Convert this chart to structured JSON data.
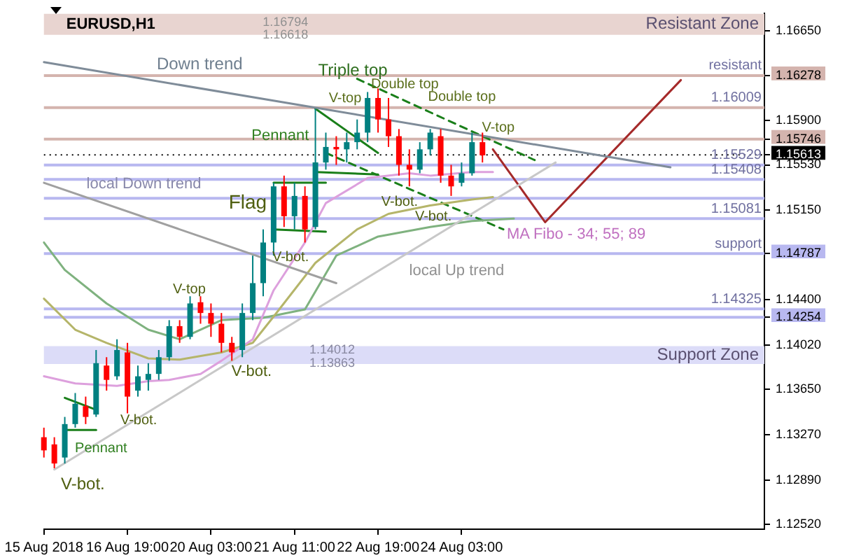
{
  "chart_data": {
    "type": "candlestick",
    "title": "EURUSD,H1",
    "categories": [
      "15 Aug 2018",
      null,
      null,
      null,
      null,
      null,
      null,
      null,
      "16 Aug 19:00",
      null,
      null,
      null,
      null,
      null,
      null,
      null,
      "20 Aug 03:00",
      null,
      null,
      null,
      null,
      null,
      null,
      null,
      "21 Aug 11:00",
      null,
      null,
      null,
      null,
      null,
      null,
      null,
      "22 Aug 19:00",
      null,
      null,
      null,
      null,
      null,
      null,
      null,
      "24 Aug 03:00",
      null,
      null,
      null,
      null,
      null,
      null,
      null,
      null,
      null,
      null,
      null,
      null,
      null,
      null,
      null,
      null,
      null,
      null,
      null,
      null,
      null,
      null,
      null,
      null,
      null,
      null,
      null,
      null,
      null
    ],
    "ohlc": [
      [
        1.1325,
        1.1333,
        1.1308,
        1.1314
      ],
      [
        1.1319,
        1.1325,
        1.1299,
        1.1303
      ],
      [
        1.1308,
        1.1342,
        1.1303,
        1.1336
      ],
      [
        1.1336,
        1.1362,
        1.1333,
        1.1353
      ],
      [
        1.1351,
        1.1359,
        1.1336,
        1.1342
      ],
      [
        1.1344,
        1.1398,
        1.1342,
        1.1387
      ],
      [
        1.1385,
        1.1392,
        1.1364,
        1.1373
      ],
      [
        1.1376,
        1.1407,
        1.1373,
        1.1398
      ],
      [
        1.1396,
        1.1404,
        1.1345,
        1.1359
      ],
      [
        1.1364,
        1.1385,
        1.1359,
        1.1376
      ],
      [
        1.1373,
        1.1387,
        1.1364,
        1.1378
      ],
      [
        1.1378,
        1.1398,
        1.1373,
        1.1392
      ],
      [
        1.1392,
        1.1423,
        1.1389,
        1.1418
      ],
      [
        1.1418,
        1.1423,
        1.1404,
        1.1409
      ],
      [
        1.1409,
        1.1443,
        1.1407,
        1.1437
      ],
      [
        1.1438,
        1.1443,
        1.142,
        1.1429
      ],
      [
        1.1429,
        1.1437,
        1.1409,
        1.142
      ],
      [
        1.142,
        1.1429,
        1.1396,
        1.1404
      ],
      [
        1.1404,
        1.1409,
        1.1389,
        1.1396
      ],
      [
        1.1398,
        1.1437,
        1.1392,
        1.1429
      ],
      [
        1.1429,
        1.1477,
        1.1423,
        1.1454
      ],
      [
        1.1454,
        1.1499,
        1.1443,
        1.1488
      ],
      [
        1.1488,
        1.1538,
        1.1477,
        1.1535
      ],
      [
        1.1535,
        1.1544,
        1.1501,
        1.151
      ],
      [
        1.151,
        1.1538,
        1.1499,
        1.1527
      ],
      [
        1.1527,
        1.1535,
        1.1488,
        1.1499
      ],
      [
        1.1501,
        1.16,
        1.1499,
        1.1555
      ],
      [
        1.1555,
        1.158,
        1.1549,
        1.1568
      ],
      [
        1.1568,
        1.1577,
        1.1553,
        1.1566
      ],
      [
        1.1566,
        1.158,
        1.1555,
        1.1572
      ],
      [
        1.1572,
        1.1591,
        1.1566,
        1.158
      ],
      [
        1.158,
        1.1614,
        1.1572,
        1.1609
      ],
      [
        1.1609,
        1.1617,
        1.158,
        1.1591
      ],
      [
        1.1591,
        1.1609,
        1.1568,
        1.1577
      ],
      [
        1.1577,
        1.1583,
        1.1544,
        1.1553
      ],
      [
        1.1553,
        1.1566,
        1.1535,
        1.1549
      ],
      [
        1.1549,
        1.1572,
        1.1546,
        1.1566
      ],
      [
        1.1566,
        1.1583,
        1.1561,
        1.158
      ],
      [
        1.1577,
        1.1583,
        1.1538,
        1.1544
      ],
      [
        1.1544,
        1.1553,
        1.1527,
        1.1535
      ],
      [
        1.1538,
        1.1555,
        1.1535,
        1.1546
      ],
      [
        1.1546,
        1.158,
        1.1544,
        1.1572
      ],
      [
        1.1572,
        1.158,
        1.1555,
        1.1561
      ],
      null,
      null,
      null,
      null,
      null,
      null,
      null,
      null,
      null,
      null,
      null,
      null,
      null,
      null,
      null,
      null,
      null,
      null,
      null,
      null,
      null,
      null,
      null,
      null,
      null,
      null,
      null
    ],
    "colors": [
      "#ff0000",
      "#ff0000",
      "#008080",
      "#008080",
      "#ff0000",
      "#008080",
      "#ff0000",
      "#008080",
      "#ff0000",
      "#008080",
      "#008080",
      "#008080",
      "#008080",
      "#ff0000",
      "#008080",
      "#ff0000",
      "#ff0000",
      "#ff0000",
      "#ff0000",
      "#008080",
      "#008080",
      "#008080",
      "#008080",
      "#ff0000",
      "#008080",
      "#ff0000",
      "#008080",
      "#008080",
      "#ff0000",
      "#008080",
      "#008080",
      "#008080",
      "#ff0000",
      "#ff0000",
      "#ff0000",
      "#ff0000",
      "#008080",
      "#008080",
      "#ff0000",
      "#ff0000",
      "#008080",
      "#008080",
      "#ff0000",
      null,
      null,
      null,
      null,
      null,
      null,
      null,
      null,
      null,
      null,
      null,
      null,
      null,
      null,
      null,
      null,
      null,
      null,
      null,
      null,
      null,
      null,
      null,
      null,
      null,
      null,
      null
    ],
    "series": [
      {
        "type": "line",
        "color": "#7f8c99",
        "values": [
          1.1639,
          null,
          null,
          null,
          null,
          null,
          null,
          null,
          null,
          null,
          null,
          null,
          null,
          null,
          null,
          null,
          null,
          null,
          null,
          null,
          null,
          null,
          null,
          null,
          null,
          null,
          null,
          null,
          null,
          null,
          null,
          null,
          null,
          null,
          null,
          null,
          null,
          null,
          null,
          null,
          null,
          null,
          null,
          null,
          null,
          null,
          null,
          null,
          null,
          null,
          null,
          null,
          null,
          null,
          null,
          null,
          null,
          null,
          null,
          null,
          1.1551,
          null,
          null,
          null,
          null,
          null,
          null,
          null,
          null,
          null
        ]
      },
      {
        "type": "line",
        "color": "#a0a0a0",
        "values": [
          1.1538,
          null,
          null,
          null,
          null,
          null,
          null,
          null,
          null,
          null,
          null,
          null,
          null,
          null,
          null,
          null,
          null,
          null,
          null,
          null,
          null,
          null,
          null,
          null,
          null,
          null,
          null,
          null,
          1.1454,
          null,
          null,
          null,
          null,
          null,
          null,
          null,
          null,
          null,
          null,
          null,
          null,
          null,
          null,
          null,
          null,
          null,
          null,
          null,
          null,
          null,
          null,
          null,
          null,
          null,
          null,
          null,
          null,
          null,
          null,
          null,
          null,
          null,
          null,
          null,
          null,
          null,
          null,
          null,
          null,
          null
        ]
      },
      {
        "type": "line",
        "color": "#c8c8c8",
        "values": [
          null,
          1.1298,
          null,
          null,
          null,
          null,
          null,
          null,
          null,
          null,
          null,
          null,
          null,
          null,
          null,
          null,
          null,
          null,
          null,
          null,
          null,
          null,
          null,
          null,
          null,
          null,
          null,
          null,
          null,
          null,
          null,
          null,
          null,
          null,
          null,
          null,
          null,
          null,
          null,
          null,
          null,
          null,
          null,
          null,
          null,
          null,
          null,
          null,
          null,
          1.1555,
          null,
          null,
          null,
          null,
          null,
          null,
          null,
          null,
          null,
          null,
          null,
          null,
          null,
          null,
          null,
          null,
          null,
          null,
          null,
          null
        ]
      },
      {
        "type": "line",
        "color": "#a52a2a",
        "values": [
          null,
          null,
          null,
          null,
          null,
          null,
          null,
          null,
          null,
          null,
          null,
          null,
          null,
          null,
          null,
          null,
          null,
          null,
          null,
          null,
          null,
          null,
          null,
          null,
          null,
          null,
          null,
          null,
          null,
          null,
          null,
          null,
          null,
          null,
          null,
          null,
          null,
          null,
          null,
          null,
          null,
          null,
          null,
          1.1566,
          null,
          null,
          null,
          null,
          1.1505,
          null,
          null,
          null,
          null,
          null,
          null,
          null,
          null,
          null,
          null,
          null,
          null,
          1.1624,
          null,
          null,
          null,
          null,
          null,
          null,
          null,
          null
        ]
      },
      {
        "type": "line",
        "color": "#dda0dd",
        "values": [
          1.1376,
          null,
          null,
          1.137,
          null,
          null,
          null,
          1.1368,
          null,
          null,
          1.1372,
          null,
          1.1373,
          null,
          null,
          1.1378,
          null,
          1.1389,
          null,
          null,
          1.1407,
          null,
          1.1448,
          null,
          null,
          1.1488,
          null,
          1.1521,
          null,
          null,
          null,
          1.1542,
          null,
          null,
          null,
          1.1546,
          null,
          1.1544,
          null,
          null,
          null,
          1.1547,
          null,
          1.1547,
          null,
          null,
          null,
          null,
          null,
          null,
          null,
          null,
          null,
          null,
          null,
          null,
          null,
          null,
          null,
          null,
          null,
          null,
          null,
          null,
          null,
          null,
          null,
          null,
          null,
          null
        ]
      },
      {
        "type": "line",
        "color": "#b5b56a",
        "values": [
          1.1441,
          null,
          null,
          1.1415,
          null,
          null,
          1.1404,
          null,
          null,
          null,
          1.1391,
          null,
          null,
          1.139,
          null,
          null,
          null,
          1.1396,
          null,
          null,
          1.1404,
          null,
          1.1426,
          null,
          null,
          null,
          1.1471,
          null,
          null,
          null,
          1.1499,
          null,
          null,
          1.1512,
          null,
          null,
          null,
          1.1519,
          null,
          null,
          null,
          1.1524,
          null,
          1.1526,
          null,
          null,
          null,
          null,
          null,
          null,
          null,
          null,
          null,
          null,
          null,
          null,
          null,
          null,
          null,
          null,
          null,
          null,
          null,
          null,
          null,
          null,
          null,
          null,
          null,
          null
        ]
      },
      {
        "type": "line",
        "color": "#7fb27f",
        "values": [
          1.1488,
          null,
          1.1465,
          null,
          null,
          null,
          1.1437,
          null,
          null,
          null,
          1.1415,
          null,
          null,
          1.1407,
          null,
          null,
          null,
          1.1423,
          null,
          null,
          null,
          1.1425,
          null,
          null,
          null,
          1.1432,
          null,
          null,
          1.1477,
          null,
          null,
          null,
          1.1493,
          null,
          null,
          null,
          null,
          1.1501,
          null,
          null,
          null,
          1.1506,
          null,
          null,
          null,
          1.1508,
          null,
          null,
          null,
          null,
          null,
          null,
          null,
          null,
          null,
          null,
          null,
          null,
          null,
          null,
          null,
          null,
          null,
          null,
          null,
          null,
          null,
          null,
          null,
          null
        ]
      },
      {
        "type": "line",
        "color": "#1a7f1a",
        "values": [
          null,
          null,
          null,
          null,
          null,
          null,
          null,
          null,
          null,
          null,
          null,
          null,
          null,
          null,
          null,
          null,
          null,
          null,
          null,
          null,
          null,
          null,
          1.1538,
          null,
          null,
          null,
          null,
          1.1538,
          null,
          null,
          null,
          null,
          null,
          null,
          null,
          null,
          null,
          null,
          null,
          null,
          null,
          null,
          null,
          null,
          null,
          null,
          null,
          null,
          null,
          null,
          null,
          null,
          null,
          null,
          null,
          null,
          null,
          null,
          null,
          null,
          null,
          null,
          null,
          null,
          null,
          null,
          null,
          null,
          null,
          null
        ]
      },
      {
        "type": "line",
        "color": "#1a7f1a",
        "values": [
          null,
          null,
          null,
          null,
          null,
          null,
          null,
          null,
          null,
          null,
          null,
          null,
          null,
          null,
          null,
          null,
          null,
          null,
          null,
          null,
          null,
          null,
          1.1499,
          null,
          null,
          null,
          null,
          1.1497,
          null,
          null,
          null,
          null,
          null,
          null,
          null,
          null,
          null,
          null,
          null,
          null,
          null,
          null,
          null,
          null,
          null,
          null,
          null,
          null,
          null,
          null,
          null,
          null,
          null,
          null,
          null,
          null,
          null,
          null,
          null,
          null,
          null,
          null,
          null,
          null,
          null,
          null,
          null,
          null,
          null,
          null
        ]
      },
      {
        "type": "line",
        "color": "#1a7f1a",
        "values": [
          null,
          null,
          null,
          null,
          null,
          null,
          null,
          null,
          null,
          null,
          null,
          null,
          null,
          null,
          null,
          null,
          null,
          null,
          null,
          null,
          null,
          null,
          null,
          null,
          null,
          null,
          1.16,
          null,
          null,
          null,
          null,
          null,
          1.1563,
          null,
          null,
          null,
          null,
          null,
          null,
          null,
          null,
          null,
          null,
          null,
          null,
          null,
          null,
          null,
          null,
          null,
          null,
          null,
          null,
          null,
          null,
          null,
          null,
          null,
          null,
          null,
          null,
          null,
          null,
          null,
          null,
          null,
          null,
          null,
          null,
          null
        ]
      },
      {
        "type": "line",
        "color": "#1a7f1a",
        "values": [
          null,
          null,
          null,
          null,
          null,
          null,
          null,
          null,
          null,
          null,
          null,
          null,
          null,
          null,
          null,
          null,
          null,
          null,
          null,
          null,
          null,
          null,
          null,
          null,
          null,
          null,
          1.1547,
          null,
          null,
          null,
          null,
          null,
          1.1545,
          null,
          null,
          null,
          null,
          null,
          null,
          null,
          null,
          null,
          null,
          null,
          null,
          null,
          null,
          null,
          null,
          null,
          null,
          null,
          null,
          null,
          null,
          null,
          null,
          null,
          null,
          null,
          null,
          null,
          null,
          null,
          null,
          null,
          null,
          null,
          null,
          null
        ]
      },
      {
        "type": "line",
        "color": "#1a7f1a",
        "values": [
          null,
          null,
          1.1358,
          null,
          null,
          1.1348,
          null,
          null,
          null,
          null,
          null,
          null,
          null,
          null,
          null,
          null,
          null,
          null,
          null,
          null,
          null,
          null,
          null,
          null,
          null,
          null,
          null,
          null,
          null,
          null,
          null,
          null,
          null,
          null,
          null,
          null,
          null,
          null,
          null,
          null,
          null,
          null,
          null,
          null,
          null,
          null,
          null,
          null,
          null,
          null,
          null,
          null,
          null,
          null,
          null,
          null,
          null,
          null,
          null,
          null,
          null,
          null,
          null,
          null,
          null,
          null,
          null,
          null,
          null,
          null
        ]
      },
      {
        "type": "line",
        "color": "#1a7f1a",
        "values": [
          null,
          null,
          1.1331,
          null,
          null,
          1.1331,
          null,
          null,
          null,
          null,
          null,
          null,
          null,
          null,
          null,
          null,
          null,
          null,
          null,
          null,
          null,
          null,
          null,
          null,
          null,
          null,
          null,
          null,
          null,
          null,
          null,
          null,
          null,
          null,
          null,
          null,
          null,
          null,
          null,
          null,
          null,
          null,
          null,
          null,
          null,
          null,
          null,
          null,
          null,
          null,
          null,
          null,
          null,
          null,
          null,
          null,
          null,
          null,
          null,
          null,
          null,
          null,
          null,
          null,
          null,
          null,
          null,
          null,
          null,
          null
        ]
      },
      {
        "type": "line",
        "color": "#1a7f1a",
        "line_style": "dashed",
        "values": [
          null,
          null,
          null,
          null,
          null,
          null,
          null,
          null,
          null,
          null,
          null,
          null,
          null,
          null,
          null,
          null,
          null,
          null,
          null,
          null,
          null,
          null,
          null,
          null,
          null,
          null,
          null,
          null,
          null,
          null,
          1.1625,
          null,
          null,
          null,
          null,
          null,
          null,
          null,
          null,
          null,
          null,
          null,
          null,
          null,
          null,
          null,
          null,
          1.1557,
          null,
          null,
          null,
          null,
          null,
          null,
          null,
          null,
          null,
          null,
          null,
          null,
          null,
          null,
          null,
          null,
          null,
          null,
          null,
          null,
          null,
          null
        ]
      },
      {
        "type": "line",
        "color": "#1a7f1a",
        "line_style": "dashed",
        "values": [
          null,
          null,
          null,
          null,
          null,
          null,
          null,
          null,
          null,
          null,
          null,
          null,
          null,
          null,
          null,
          null,
          null,
          null,
          null,
          null,
          null,
          null,
          null,
          null,
          null,
          null,
          null,
          1.1563,
          null,
          null,
          null,
          null,
          null,
          null,
          null,
          null,
          null,
          null,
          null,
          null,
          null,
          null,
          null,
          null,
          1.1499,
          null,
          null,
          null,
          null,
          null,
          null,
          null,
          null,
          null,
          null,
          null,
          null,
          null,
          null,
          null,
          null,
          null,
          null,
          null,
          null,
          null,
          null,
          null,
          null,
          null
        ]
      }
    ],
    "ylim": [
      1.1248,
      1.168
    ],
    "yticks": [
      {
        "value": 1.1252,
        "label": "1.12520"
      },
      {
        "value": 1.1289,
        "label": "1.12890"
      },
      {
        "value": 1.1327,
        "label": "1.13270"
      },
      {
        "value": 1.1365,
        "label": "1.13650"
      },
      {
        "value": 1.1402,
        "label": "1.14020"
      },
      {
        "value": 1.14254,
        "label": "1.14254"
      },
      {
        "value": 1.144,
        "label": "1.14400"
      },
      {
        "value": 1.14787,
        "label": "1.14787"
      },
      {
        "value": 1.1515,
        "label": "1.15150"
      },
      {
        "value": 1.1553,
        "label": "1.15530"
      },
      {
        "value": 1.15613,
        "label": "1.15613"
      },
      {
        "value": 1.15746,
        "label": "1.15746"
      },
      {
        "value": 1.159,
        "label": "1.15900"
      },
      {
        "value": 1.16278,
        "label": "1.16278"
      },
      {
        "value": 1.1665,
        "label": "1.16650"
      }
    ],
    "ref_lines": [
      {
        "axis": "y",
        "value": 1.16278,
        "label": "resistant",
        "color": "#d4b4ae"
      },
      {
        "axis": "y",
        "value": 1.16009,
        "label": "1.16009",
        "color": "#d4b4ae"
      },
      {
        "axis": "y",
        "value": 1.15746,
        "label": null,
        "color": "#d4b4ae"
      },
      {
        "axis": "y",
        "value": 1.15613,
        "label": null,
        "color": "#000000",
        "line_style": "dotted"
      },
      {
        "axis": "y",
        "value": 1.15529,
        "label": "1.15529",
        "color": "#b8b8f0"
      },
      {
        "axis": "y",
        "value": 1.15408,
        "label": "1.15408",
        "color": "#b8b8f0"
      },
      {
        "axis": "y",
        "value": 1.1525,
        "label": null,
        "color": "#b8b8f0"
      },
      {
        "axis": "y",
        "value": 1.15081,
        "label": "1.15081",
        "color": "#b8b8f0"
      },
      {
        "axis": "y",
        "value": 1.14787,
        "label": "support",
        "color": "#b8b8f0"
      },
      {
        "axis": "y",
        "value": 1.14325,
        "label": "1.14325",
        "color": "#b8b8f0"
      },
      {
        "axis": "y",
        "value": 1.14254,
        "label": null,
        "color": "#b8b8f0"
      }
    ],
    "bands": [
      {
        "axis": "y",
        "from": 1.16618,
        "to": 1.16794,
        "label": "Resistant Zone",
        "color": "#e8d4d0"
      },
      {
        "axis": "y",
        "from": 1.13863,
        "to": 1.14012,
        "label": "Support Zone",
        "color": "#dcdcf8"
      }
    ],
    "annotations": [
      "Down trend",
      "Triple top",
      "Double top",
      "Double top",
      "V-top",
      "V-top",
      "Pennant",
      "local Down trend",
      "Flag",
      "V-bot.",
      "V-bot.",
      "V-bot.",
      "MA Fibo - 34; 55; 89",
      "local Up trend",
      "V-top",
      "V-bot.",
      "V-bot.",
      "Pennant",
      "V-bot.",
      "1.16794",
      "1.16618",
      "1.14012",
      "1.13863"
    ],
    "grid": false,
    "legend": false
  }
}
